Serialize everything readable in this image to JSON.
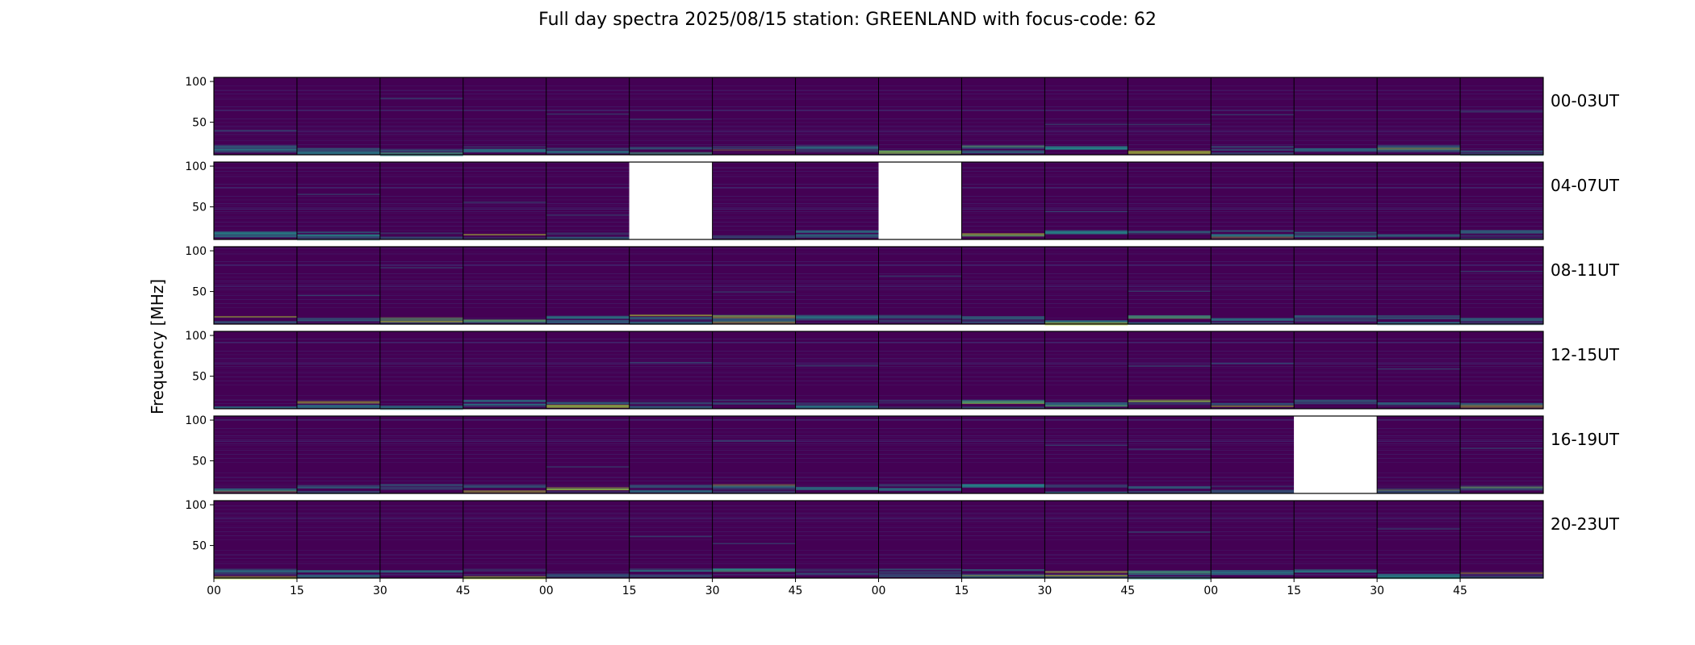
{
  "chart_data": {
    "type": "heatmap",
    "title": "Full day spectra 2025/08/15 station: GREENLAND with focus-code: 62",
    "ylabel": "Frequency [MHz]",
    "xlabel": "",
    "yticks": [
      "100",
      "50"
    ],
    "xticks": [
      "00",
      "15",
      "30",
      "45",
      "00",
      "15",
      "30",
      "45",
      "00",
      "15",
      "30",
      "45",
      "00",
      "15",
      "30",
      "45"
    ],
    "ylim": [
      10,
      105
    ],
    "colormap": "viridis",
    "panels_per_row": 16,
    "rows": [
      {
        "label": "00-03UT",
        "missing": []
      },
      {
        "label": "04-07UT",
        "missing": [
          5,
          8
        ]
      },
      {
        "label": "08-11UT",
        "missing": []
      },
      {
        "label": "12-15UT",
        "missing": []
      },
      {
        "label": "16-19UT",
        "missing": [
          13
        ]
      },
      {
        "label": "20-23UT",
        "missing": []
      }
    ],
    "colors": {
      "background": "#440154",
      "mid": "#3b528b",
      "bright": "#21918c",
      "peak": "#b5de2b",
      "frame": "#000000"
    }
  }
}
